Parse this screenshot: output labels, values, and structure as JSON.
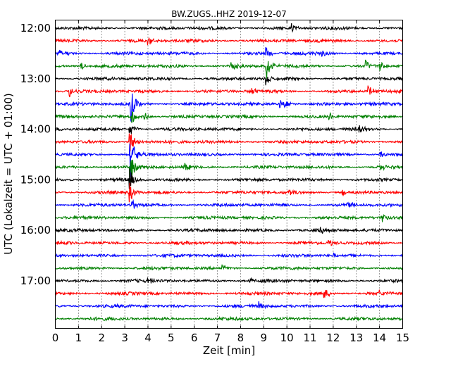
{
  "chart_data": {
    "type": "line",
    "title": "BW.ZUGS..HHZ 2019-12-07",
    "xlabel": "Zeit  [min]",
    "ylabel": "UTC (Lokalzeit = UTC + 01:00)",
    "xlim": [
      0,
      15
    ],
    "x_ticks": [
      "0",
      "1",
      "2",
      "3",
      "4",
      "5",
      "6",
      "7",
      "8",
      "9",
      "10",
      "11",
      "12",
      "13",
      "14",
      "15"
    ],
    "y_tick_labels": [
      "12:00",
      "13:00",
      "14:00",
      "15:00",
      "16:00",
      "17:00"
    ],
    "grid": "vertical dotted",
    "trace_colors": [
      "#000000",
      "#ff0000",
      "#0000ff",
      "#008000"
    ],
    "traces": [
      {
        "start": "12:00",
        "color": "#000000",
        "spikes": [
          [
            10.2,
            0.4
          ]
        ]
      },
      {
        "start": "12:15",
        "color": "#ff0000",
        "spikes": [
          [
            4.0,
            0.35
          ]
        ]
      },
      {
        "start": "12:30",
        "color": "#0000ff",
        "spikes": [
          [
            0.15,
            0.5
          ],
          [
            9.1,
            0.5
          ],
          [
            11.5,
            0.4
          ]
        ]
      },
      {
        "start": "12:45",
        "color": "#008000",
        "spikes": [
          [
            1.1,
            0.4
          ],
          [
            7.6,
            0.5
          ],
          [
            9.1,
            1.4
          ],
          [
            13.4,
            0.6
          ],
          [
            14.0,
            0.4
          ]
        ]
      },
      {
        "start": "13:00",
        "color": "#000000",
        "spikes": [
          [
            9.1,
            0.6
          ]
        ]
      },
      {
        "start": "13:15",
        "color": "#ff0000",
        "spikes": [
          [
            0.6,
            0.5
          ],
          [
            8.5,
            0.3
          ],
          [
            13.5,
            0.5
          ]
        ]
      },
      {
        "start": "13:30",
        "color": "#0000ff",
        "spikes": [
          [
            3.25,
            1.8
          ],
          [
            9.7,
            0.4
          ],
          [
            9.9,
            0.4
          ]
        ]
      },
      {
        "start": "13:45",
        "color": "#008000",
        "spikes": [
          [
            3.25,
            0.8
          ],
          [
            3.85,
            0.4
          ],
          [
            11.8,
            0.4
          ]
        ]
      },
      {
        "start": "14:00",
        "color": "#000000",
        "spikes": [
          [
            3.2,
            0.8
          ],
          [
            13.1,
            0.5
          ]
        ]
      },
      {
        "start": "14:15",
        "color": "#ff0000",
        "spikes": [
          [
            3.2,
            1.2
          ]
        ]
      },
      {
        "start": "14:30",
        "color": "#0000ff",
        "spikes": [
          [
            3.2,
            2.6
          ],
          [
            14.0,
            0.4
          ]
        ]
      },
      {
        "start": "14:45",
        "color": "#008000",
        "spikes": [
          [
            3.2,
            1.5
          ],
          [
            5.6,
            0.35
          ],
          [
            14.0,
            0.4
          ]
        ]
      },
      {
        "start": "15:00",
        "color": "#000000",
        "spikes": [
          [
            3.2,
            0.9
          ]
        ]
      },
      {
        "start": "15:15",
        "color": "#ff0000",
        "spikes": [
          [
            3.2,
            0.8
          ],
          [
            10.1,
            0.35
          ],
          [
            12.4,
            0.35
          ]
        ]
      },
      {
        "start": "15:30",
        "color": "#0000ff",
        "spikes": [
          [
            3.25,
            0.6
          ],
          [
            12.6,
            0.5
          ]
        ]
      },
      {
        "start": "15:45",
        "color": "#008000",
        "spikes": [
          [
            14.1,
            0.5
          ]
        ]
      },
      {
        "start": "16:00",
        "color": "#000000",
        "spikes": [
          [
            11.4,
            0.3
          ]
        ]
      },
      {
        "start": "16:15",
        "color": "#ff0000",
        "spikes": [
          [
            11.8,
            0.3
          ]
        ]
      },
      {
        "start": "16:30",
        "color": "#0000ff",
        "spikes": [
          [
            12.0,
            0.3
          ]
        ]
      },
      {
        "start": "16:45",
        "color": "#008000",
        "spikes": [
          [
            7.2,
            0.3
          ]
        ]
      },
      {
        "start": "17:00",
        "color": "#000000",
        "spikes": [
          [
            4.0,
            0.3
          ],
          [
            8.4,
            0.3
          ]
        ]
      },
      {
        "start": "17:15",
        "color": "#ff0000",
        "spikes": [
          [
            11.6,
            0.5
          ],
          [
            14.0,
            0.3
          ]
        ]
      },
      {
        "start": "17:30",
        "color": "#0000ff",
        "spikes": [
          [
            8.8,
            0.4
          ]
        ]
      },
      {
        "start": "17:45",
        "color": "#008000",
        "spikes": []
      }
    ]
  }
}
